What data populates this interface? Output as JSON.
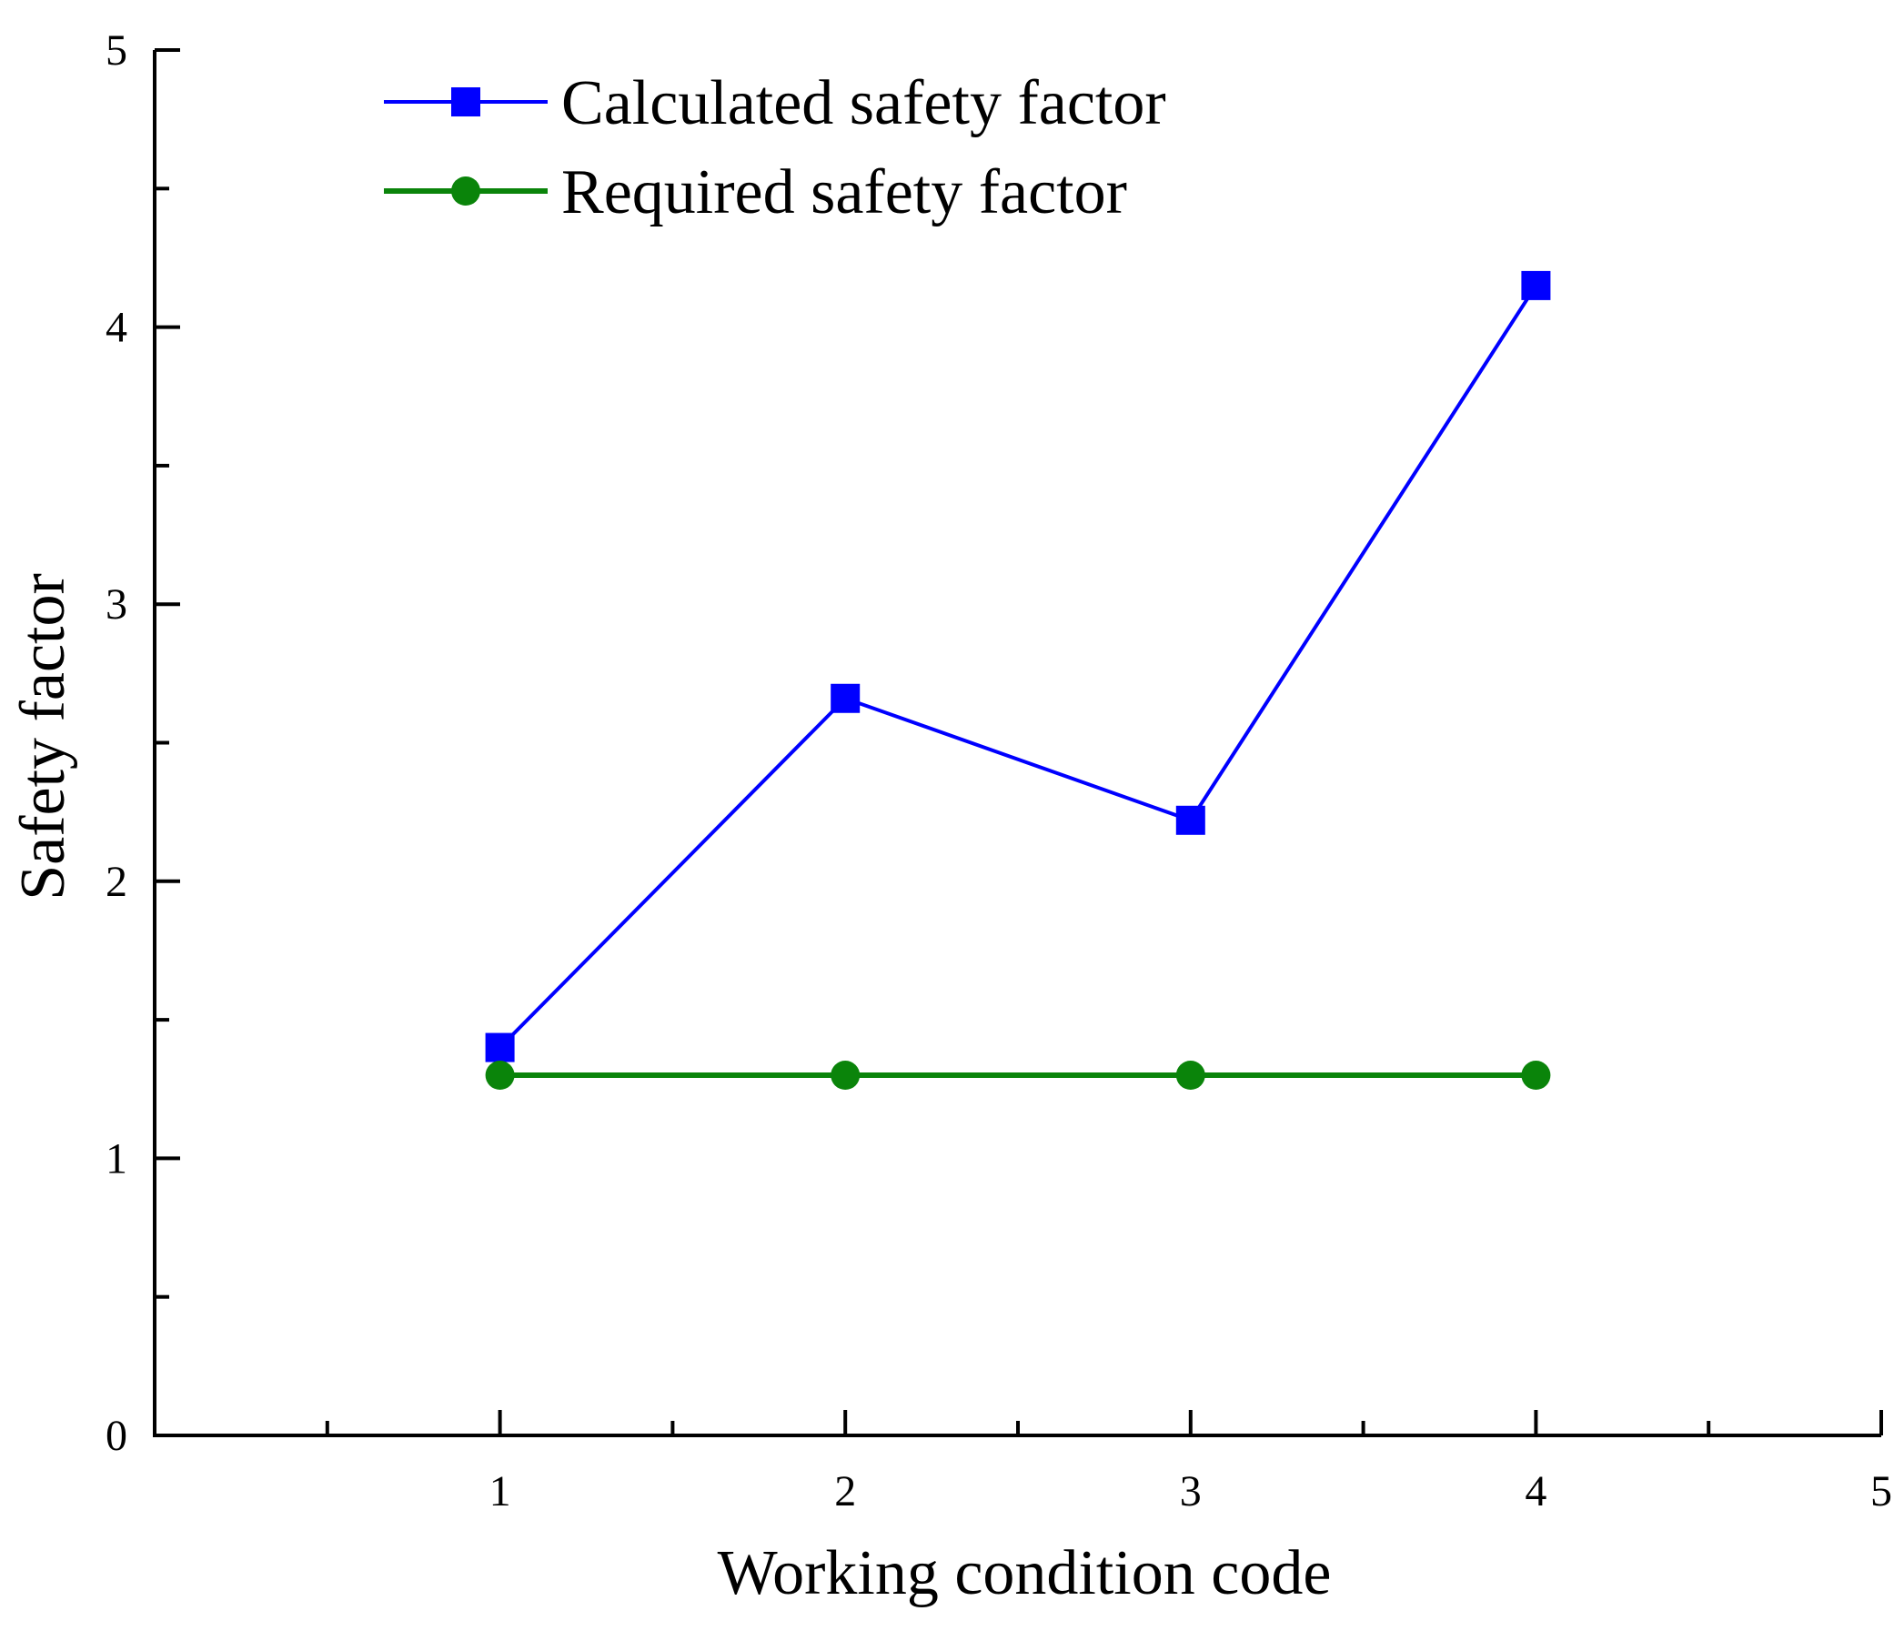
{
  "chart_data": {
    "type": "line",
    "title": "",
    "xlabel": "Working condition code",
    "ylabel": "Safety factor",
    "xlim": [
      0,
      5
    ],
    "ylim": [
      0,
      5
    ],
    "xticks": [
      1,
      2,
      3,
      4,
      5
    ],
    "yticks": [
      0,
      1,
      2,
      3,
      4,
      5
    ],
    "grid": false,
    "legend_position": "top-left",
    "series": [
      {
        "name": "Calculated safety factor",
        "marker": "square",
        "color": "#0000ff",
        "x": [
          1,
          2,
          3,
          4
        ],
        "y": [
          1.4,
          2.66,
          2.22,
          4.15
        ]
      },
      {
        "name": "Required safety factor",
        "marker": "circle",
        "color": "#0a840a",
        "x": [
          1,
          2,
          3,
          4
        ],
        "y": [
          1.3,
          1.3,
          1.3,
          1.3
        ]
      }
    ]
  }
}
